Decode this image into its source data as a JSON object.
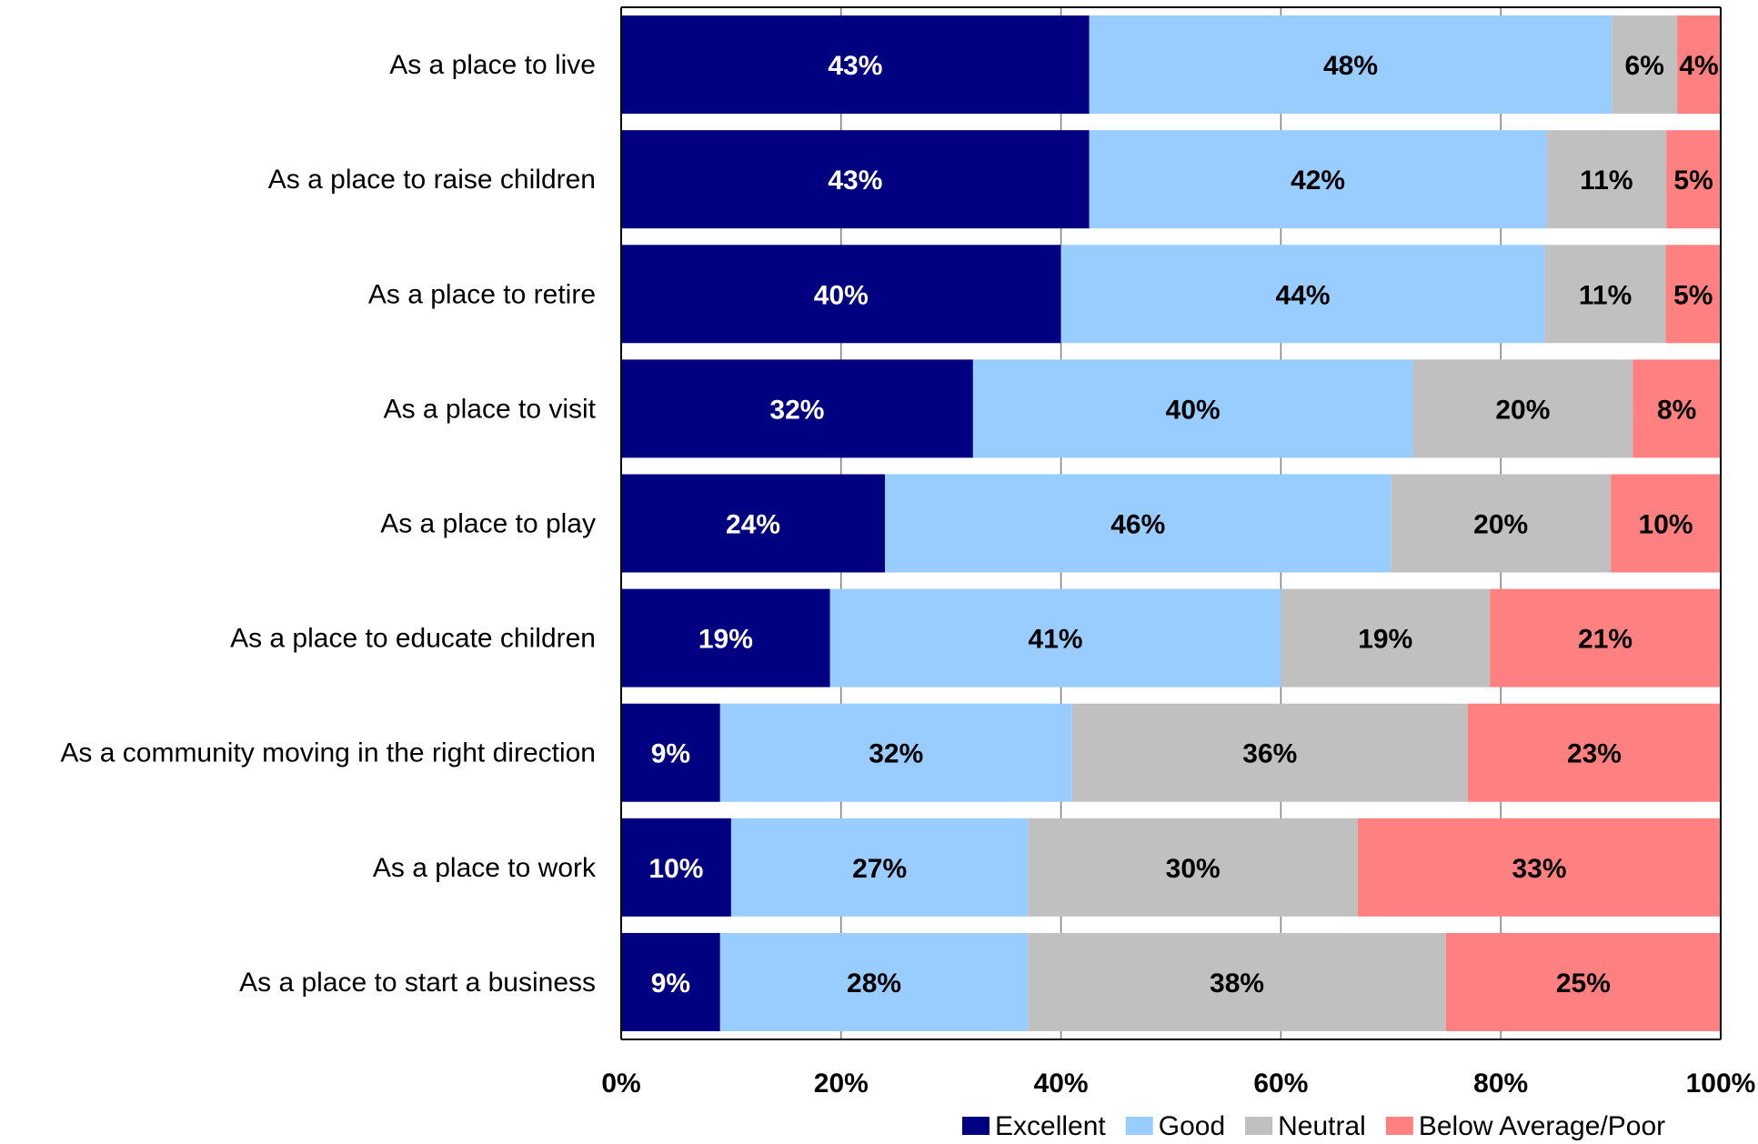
{
  "chart_data": {
    "type": "bar",
    "orientation": "horizontal",
    "stacked": true,
    "title": "",
    "xlabel": "",
    "ylabel": "",
    "xlim": [
      0,
      100
    ],
    "x_ticks": [
      "0%",
      "20%",
      "40%",
      "60%",
      "80%",
      "100%"
    ],
    "grid": "vertical",
    "legend_position": "bottom-right",
    "categories": [
      "As a place to live",
      "As a place to raise children",
      "As a place to retire",
      "As a place to visit",
      "As a place to play",
      "As a place to educate children",
      "As a community moving in the right direction",
      "As a place to work",
      "As a place to start a business"
    ],
    "series": [
      {
        "name": "Excellent",
        "color": "#000080",
        "label_color": "#ffffff",
        "values": [
          43,
          43,
          40,
          32,
          24,
          19,
          9,
          10,
          9
        ],
        "labels": [
          "43%",
          "43%",
          "40%",
          "32%",
          "24%",
          "19%",
          "9%",
          "10%",
          "9%"
        ]
      },
      {
        "name": "Good",
        "color": "#99ccff",
        "label_color": "#000000",
        "values": [
          48,
          42,
          44,
          40,
          46,
          41,
          32,
          27,
          28
        ],
        "labels": [
          "48%",
          "42%",
          "44%",
          "40%",
          "46%",
          "41%",
          "32%",
          "27%",
          "28%"
        ]
      },
      {
        "name": "Neutral",
        "color": "#c0c0c0",
        "label_color": "#000000",
        "values": [
          6,
          11,
          11,
          20,
          20,
          19,
          36,
          30,
          38
        ],
        "labels": [
          "6%",
          "11%",
          "11%",
          "20%",
          "20%",
          "19%",
          "36%",
          "30%",
          "38%"
        ]
      },
      {
        "name": "Below Average/Poor",
        "color": "#ff8080",
        "label_color": "#000000",
        "values": [
          4,
          5,
          5,
          8,
          10,
          21,
          23,
          33,
          25
        ],
        "labels": [
          "4%",
          "5%",
          "5%",
          "8%",
          "10%",
          "21%",
          "23%",
          "33%",
          "25%"
        ]
      }
    ]
  }
}
